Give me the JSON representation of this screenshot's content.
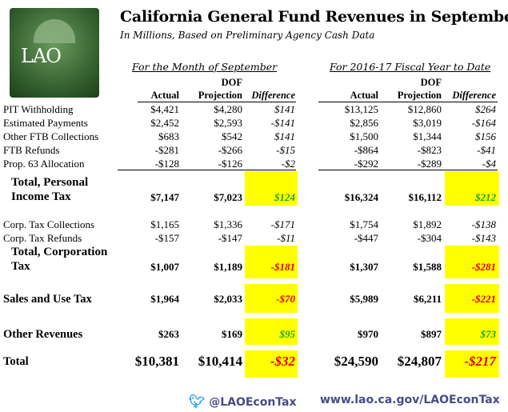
{
  "title": "California General Fund Revenues in September",
  "subtitle": "In Millions, Based on Preliminary Agency Cash Data",
  "logo_text": "LAO",
  "month_header": "For the Month of September",
  "ytd_header": "For 2016-17 Fiscal Year to Date",
  "cols": {
    "dof": "DOF",
    "actual": "Actual",
    "projection": "Projection",
    "difference": "Difference"
  },
  "colors": {
    "highlight": "#ffff00",
    "positive": "#1fa51f",
    "negative": "#e00000"
  },
  "rows": [
    {
      "label": "PIT Withholding",
      "m": [
        "$4,421",
        "$4,280",
        "$141"
      ],
      "y": [
        "$13,125",
        "$12,860",
        "$264"
      ]
    },
    {
      "label": "Estimated Payments",
      "m": [
        "$2,452",
        "$2,593",
        "-$141"
      ],
      "y": [
        "$2,856",
        "$3,019",
        "-$164"
      ]
    },
    {
      "label": "Other FTB Collections",
      "m": [
        "$683",
        "$542",
        "$141"
      ],
      "y": [
        "$1,500",
        "$1,344",
        "$156"
      ]
    },
    {
      "label": "FTB Refunds",
      "m": [
        "-$281",
        "-$266",
        "-$15"
      ],
      "y": [
        "-$864",
        "-$823",
        "-$41"
      ]
    },
    {
      "label": "Prop. 63 Allocation",
      "m": [
        "-$128",
        "-$126",
        "-$2"
      ],
      "y": [
        "-$292",
        "-$289",
        "-$4"
      ]
    },
    {
      "label1": "Total, Personal",
      "label2": "Income Tax",
      "m": [
        "$7,147",
        "$7,023",
        "$124"
      ],
      "y": [
        "$16,324",
        "$16,112",
        "$212"
      ]
    },
    {
      "label": "Corp. Tax Collections",
      "m": [
        "$1,165",
        "$1,336",
        "-$171"
      ],
      "y": [
        "$1,754",
        "$1,892",
        "-$138"
      ]
    },
    {
      "label": "Corp. Tax Refunds",
      "m": [
        "-$157",
        "-$147",
        "-$11"
      ],
      "y": [
        "-$447",
        "-$304",
        "-$143"
      ]
    },
    {
      "label1": "Total, Corporation",
      "label2": "Tax",
      "m": [
        "$1,007",
        "$1,189",
        "-$181"
      ],
      "y": [
        "$1,307",
        "$1,588",
        "-$281"
      ]
    },
    {
      "label": "Sales and Use Tax",
      "m": [
        "$1,964",
        "$2,033",
        "-$70"
      ],
      "y": [
        "$5,989",
        "$6,211",
        "-$221"
      ]
    },
    {
      "label": "Other Revenues",
      "m": [
        "$263",
        "$169",
        "$95"
      ],
      "y": [
        "$970",
        "$897",
        "$73"
      ]
    },
    {
      "label": "Total",
      "m": [
        "$10,381",
        "$10,414",
        "-$32"
      ],
      "y": [
        "$24,590",
        "$24,807",
        "-$217"
      ]
    }
  ],
  "footer": {
    "twitter": "@LAOEconTax",
    "url": "www.lao.ca.gov/LAOEconTax",
    "bird_icon": "twitter-bird-icon"
  }
}
